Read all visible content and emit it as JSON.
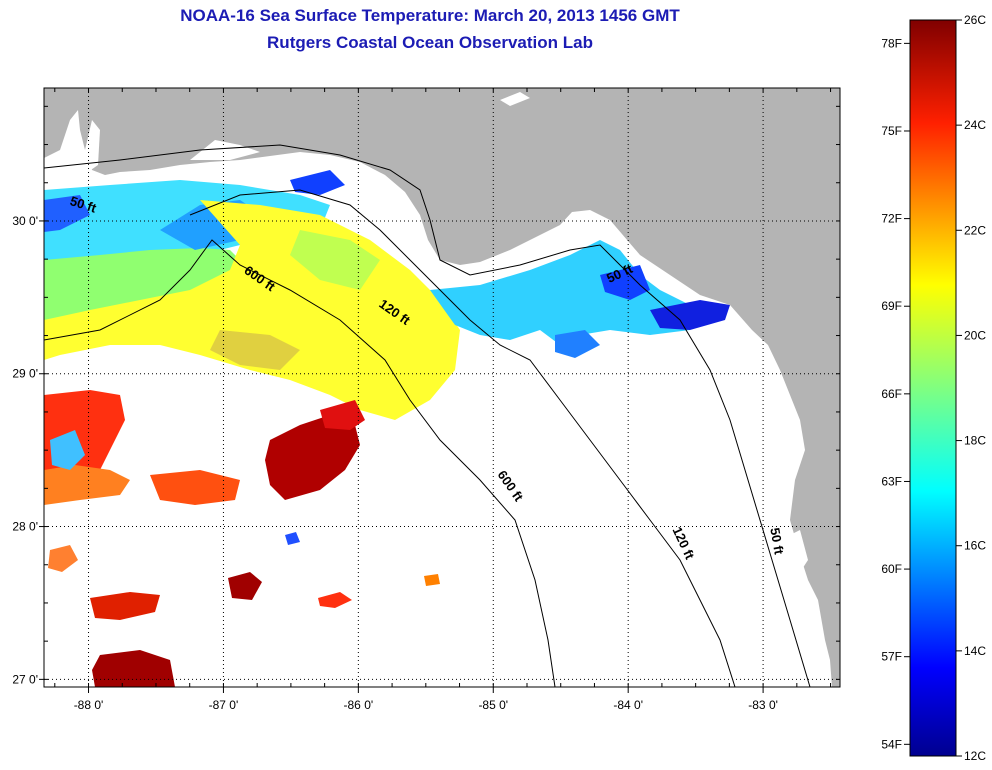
{
  "title": "NOAA-16 Sea Surface Temperature:  March 20, 2013 1456 GMT",
  "subtitle": "Rutgers Coastal Ocean Observation Lab",
  "map": {
    "lon_range": [
      -88.33,
      -82.43
    ],
    "lat_range": [
      26.95,
      30.87
    ],
    "lon_ticks": [
      {
        "value": -88,
        "label": "-88 0'"
      },
      {
        "value": -87,
        "label": "-87 0'"
      },
      {
        "value": -86,
        "label": "-86 0'"
      },
      {
        "value": -85,
        "label": "-85 0'"
      },
      {
        "value": -84,
        "label": "-84 0'"
      },
      {
        "value": -83,
        "label": "-83 0'"
      }
    ],
    "lat_ticks": [
      {
        "value": 30,
        "label": "30 0'"
      },
      {
        "value": 29,
        "label": "29 0'"
      },
      {
        "value": 28,
        "label": "28 0'"
      },
      {
        "value": 27,
        "label": "27 0'"
      }
    ],
    "land_color": "#b4b4b4",
    "cloud_color": "#ffffff",
    "contours": [
      {
        "label": "50 ft",
        "lon": -88.05,
        "lat": 30.08,
        "rotate": 18
      },
      {
        "label": "600 ft",
        "lon": -86.75,
        "lat": 29.6,
        "rotate": 35
      },
      {
        "label": "120 ft",
        "lon": -85.75,
        "lat": 29.38,
        "rotate": 35
      },
      {
        "label": "50 ft",
        "lon": -84.05,
        "lat": 29.63,
        "rotate": -25
      },
      {
        "label": "600 ft",
        "lon": -84.9,
        "lat": 28.25,
        "rotate": 55
      },
      {
        "label": "120 ft",
        "lon": -83.62,
        "lat": 27.88,
        "rotate": 65
      },
      {
        "label": "50 ft",
        "lon": -82.93,
        "lat": 27.9,
        "rotate": 80
      }
    ]
  },
  "colorbar": {
    "celsius_labels": [
      {
        "value": 26,
        "label": "26C"
      },
      {
        "value": 24,
        "label": "24C"
      },
      {
        "value": 22,
        "label": "22C"
      },
      {
        "value": 20,
        "label": "20C"
      },
      {
        "value": 18,
        "label": "18C"
      },
      {
        "value": 16,
        "label": "16C"
      },
      {
        "value": 14,
        "label": "14C"
      },
      {
        "value": 12,
        "label": "12C"
      }
    ],
    "fahrenheit_labels": [
      {
        "value": 78,
        "label": "78F"
      },
      {
        "value": 75,
        "label": "75F"
      },
      {
        "value": 72,
        "label": "72F"
      },
      {
        "value": 69,
        "label": "69F"
      },
      {
        "value": 66,
        "label": "66F"
      },
      {
        "value": 63,
        "label": "63F"
      },
      {
        "value": 60,
        "label": "60F"
      },
      {
        "value": 57,
        "label": "57F"
      },
      {
        "value": 54,
        "label": "54F"
      }
    ],
    "range_c": [
      12,
      26
    ],
    "colors": [
      "#00008f",
      "#0000ff",
      "#0080ff",
      "#00ffff",
      "#80ff80",
      "#ffff00",
      "#ff8000",
      "#ff0000",
      "#800000"
    ]
  }
}
